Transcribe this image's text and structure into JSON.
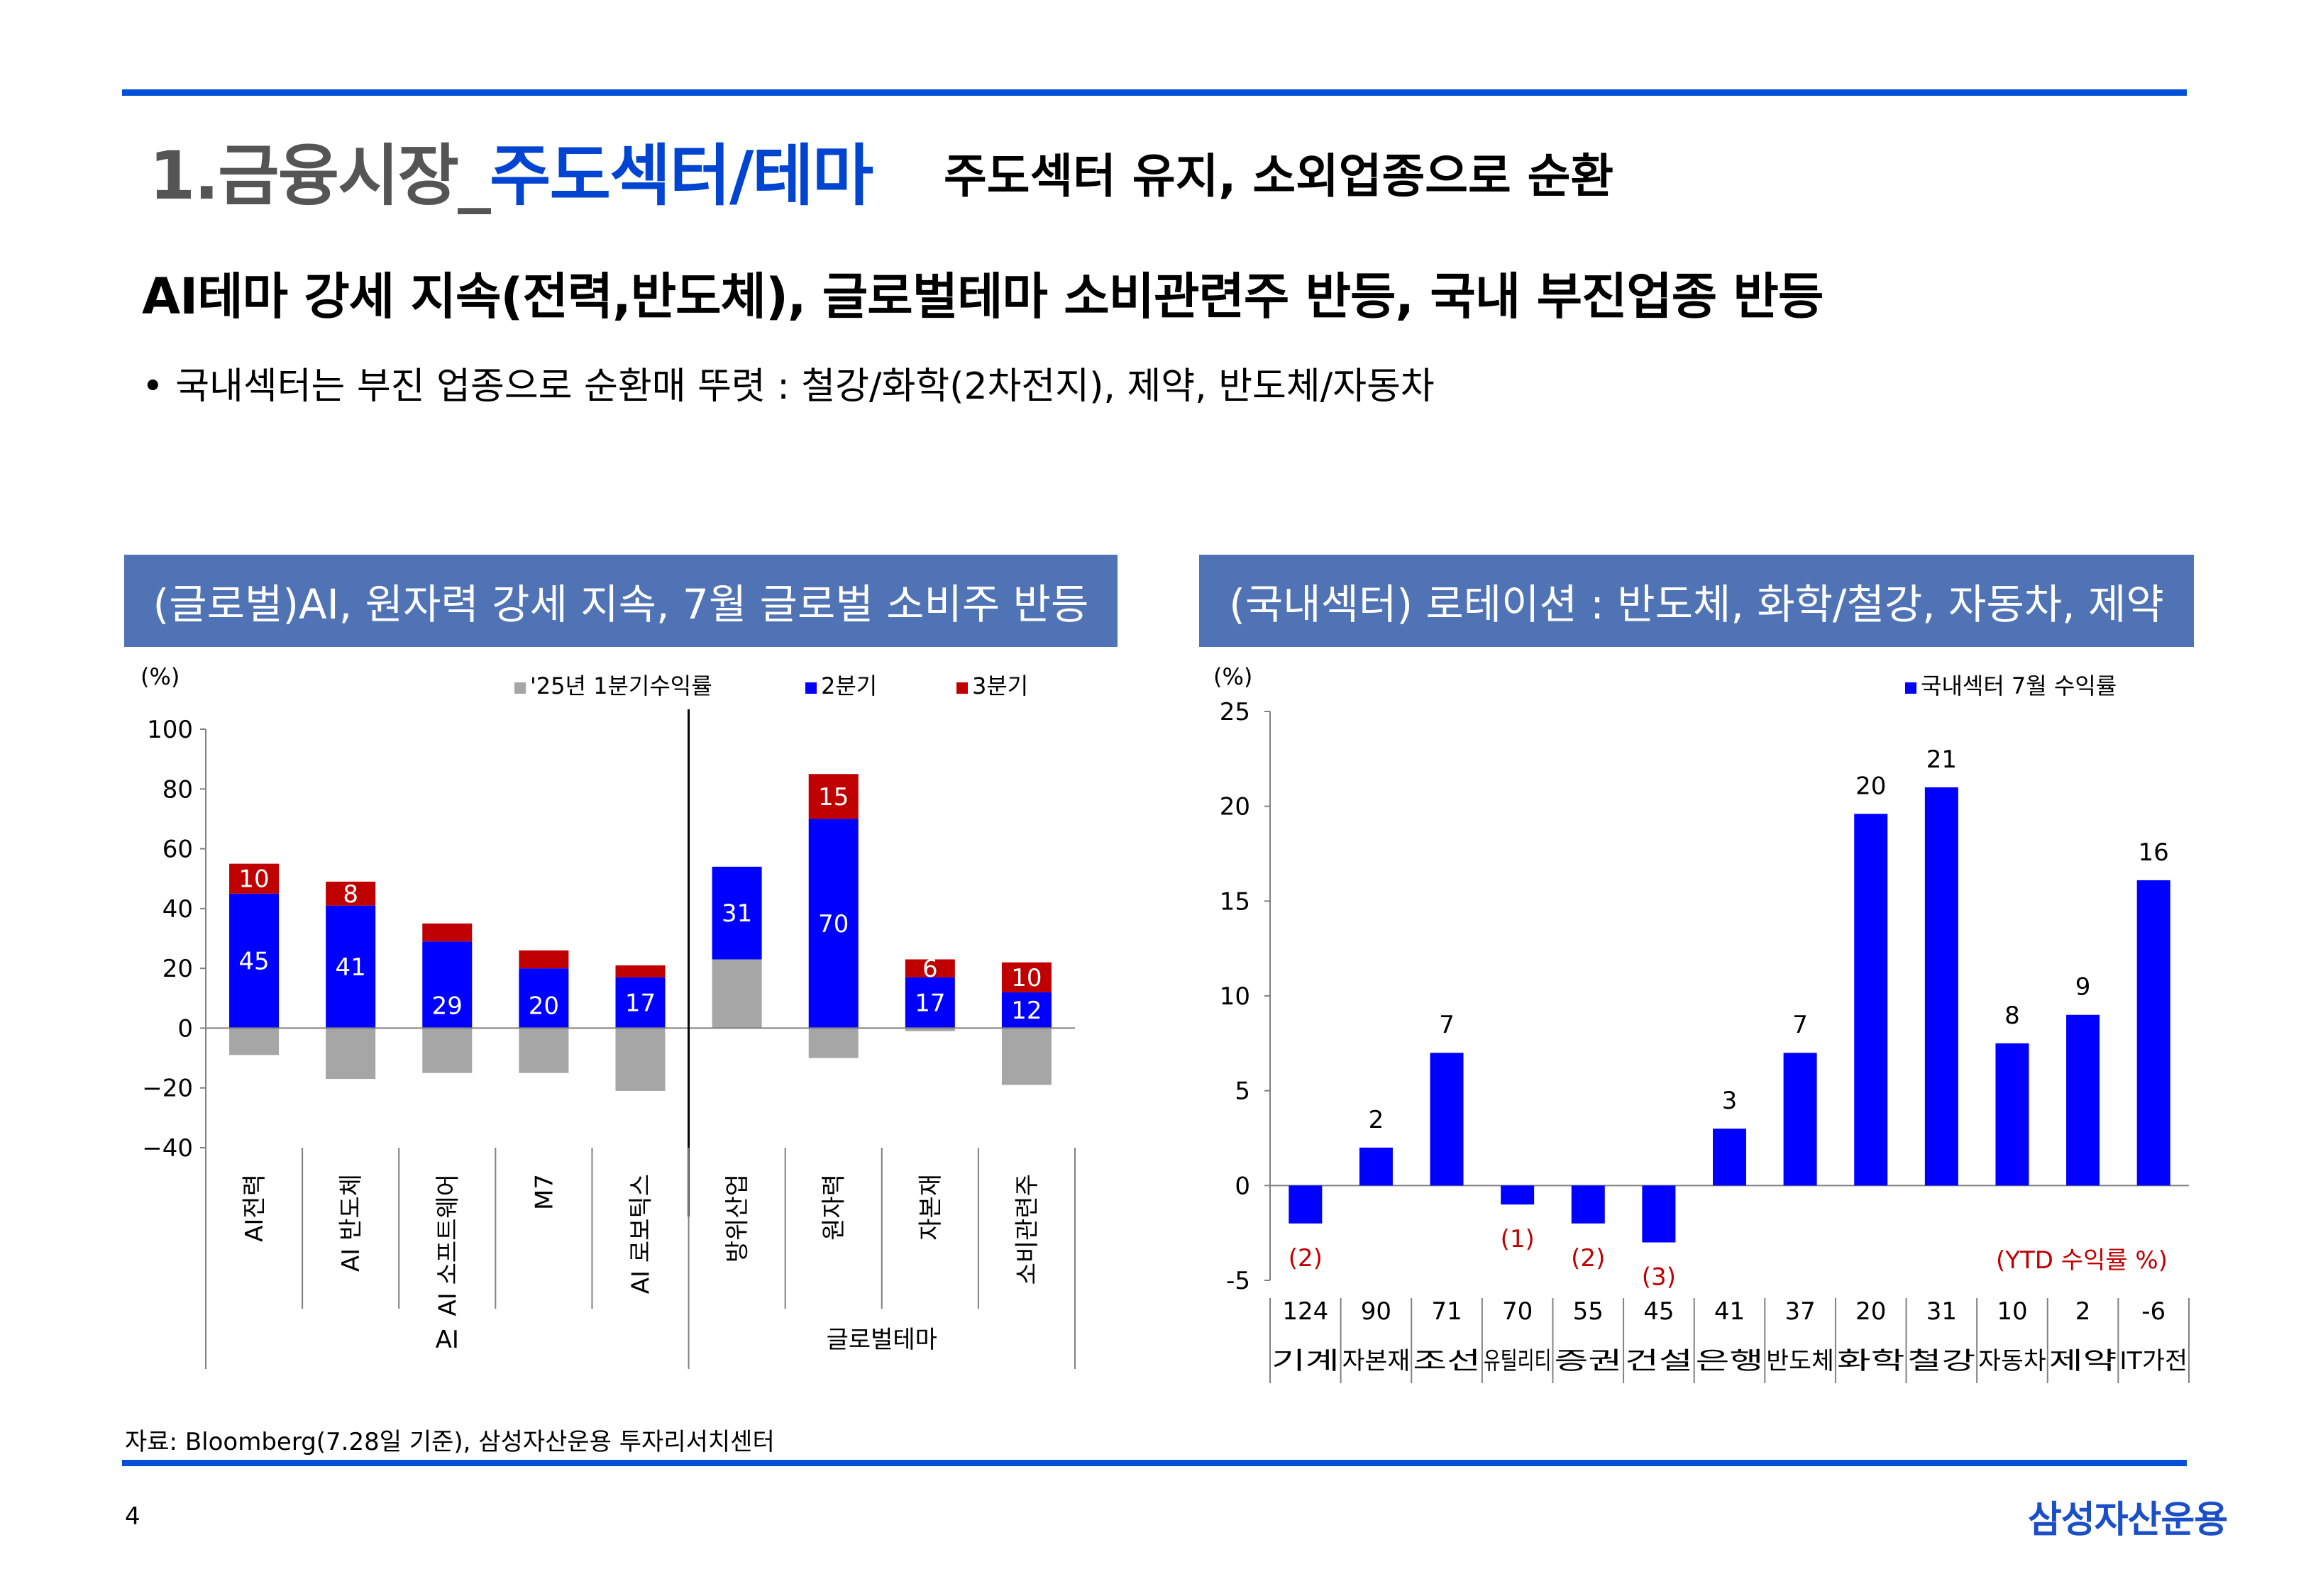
{
  "header": {
    "title_prefix": "1.금융시장_",
    "title_accent": "주도섹터/테마",
    "subtitle": "주도섹터 유지, 소외업종으로 순환"
  },
  "headline": "AI테마 강세 지속(전력,반도체), 글로벌테마 소비관련주 반등, 국내 부진업종 반등",
  "bullet": "• 국내섹터는 부진 업종으로 순환매 뚜렷 : 철강/화학(2차전지), 제약, 반도체/자동차",
  "left_panel": {
    "banner": "(글로벌)AI, 원자력 강세 지속, 7월 글로벌 소비주 반등"
  },
  "right_panel": {
    "banner": "(국내섹터) 로테이션 : 반도체, 화학/철강, 자동차, 제약"
  },
  "colors": {
    "gray": "#A6A6A6",
    "blue": "#0000FF",
    "red": "#C00000",
    "banner": "#5073B6",
    "rule": "#0050D8"
  },
  "chart_data": [
    {
      "type": "bar",
      "stacked": true,
      "ylabel": "(%)",
      "ylim": [
        -40,
        100
      ],
      "yticks": [
        -40,
        -20,
        0,
        20,
        40,
        60,
        80,
        100
      ],
      "categories": [
        "AI전력",
        "AI 반도체",
        "AI 소프트웨어",
        "M7",
        "AI 로보틱스",
        "방위산업",
        "원자력",
        "자본재",
        "소비관련주"
      ],
      "groups": [
        {
          "label": "AI",
          "categories": [
            "AI전력",
            "AI 반도체",
            "AI 소프트웨어",
            "M7",
            "AI 로보틱스"
          ]
        },
        {
          "label": "글로벌테마",
          "categories": [
            "방위산업",
            "원자력",
            "자본재",
            "소비관련주"
          ]
        }
      ],
      "series": [
        {
          "name": "'25년 1분기수익률",
          "values": [
            -9,
            -17,
            -15,
            -15,
            -21,
            23,
            -10,
            -1,
            -19
          ],
          "labels": [
            "",
            "",
            "",
            "",
            "",
            "",
            "",
            "",
            ""
          ]
        },
        {
          "name": "2분기",
          "values": [
            45,
            41,
            29,
            20,
            17,
            31,
            70,
            17,
            12
          ],
          "labels": [
            "45",
            "41",
            "29",
            "20",
            "17",
            "31",
            "70",
            "17",
            "12"
          ]
        },
        {
          "name": "3분기",
          "values": [
            10,
            8,
            6,
            6,
            4,
            0,
            15,
            6,
            10
          ],
          "labels": [
            "10",
            "8",
            "",
            "",
            "",
            "",
            "15",
            "6",
            "10"
          ]
        }
      ],
      "legend": "top"
    },
    {
      "type": "bar",
      "ylabel": "(%)",
      "ylim": [
        -5,
        25
      ],
      "yticks": [
        -5,
        0,
        5,
        10,
        15,
        20,
        25
      ],
      "categories": [
        "기계",
        "자본재",
        "조선",
        "유틸리티",
        "증권",
        "건설",
        "은행",
        "반도체",
        "화학",
        "철강",
        "자동차",
        "제약",
        "IT가전"
      ],
      "series": [
        {
          "name": "국내섹터 7월 수익률",
          "values": [
            -2,
            2,
            7,
            -1,
            -2,
            -3,
            3,
            7,
            19.6,
            21,
            7.5,
            9,
            16.1
          ],
          "labels": [
            "(2)",
            "2",
            "7",
            "(1)",
            "(2)",
            "(3)",
            "3",
            "7",
            "20",
            "21",
            "8",
            "9",
            "16"
          ]
        }
      ],
      "ytd_label": "(YTD 수익률 %)",
      "ytd_values": [
        "124",
        "90",
        "71",
        "70",
        "55",
        "45",
        "41",
        "37",
        "20",
        "31",
        "10",
        "2",
        "-6"
      ],
      "legend": "top-right"
    }
  ],
  "footnote": "자료: Bloomberg(7.28일 기준), 삼성자산운용 투자리서치센터",
  "page_number": "4",
  "logo": "삼성자산운용"
}
